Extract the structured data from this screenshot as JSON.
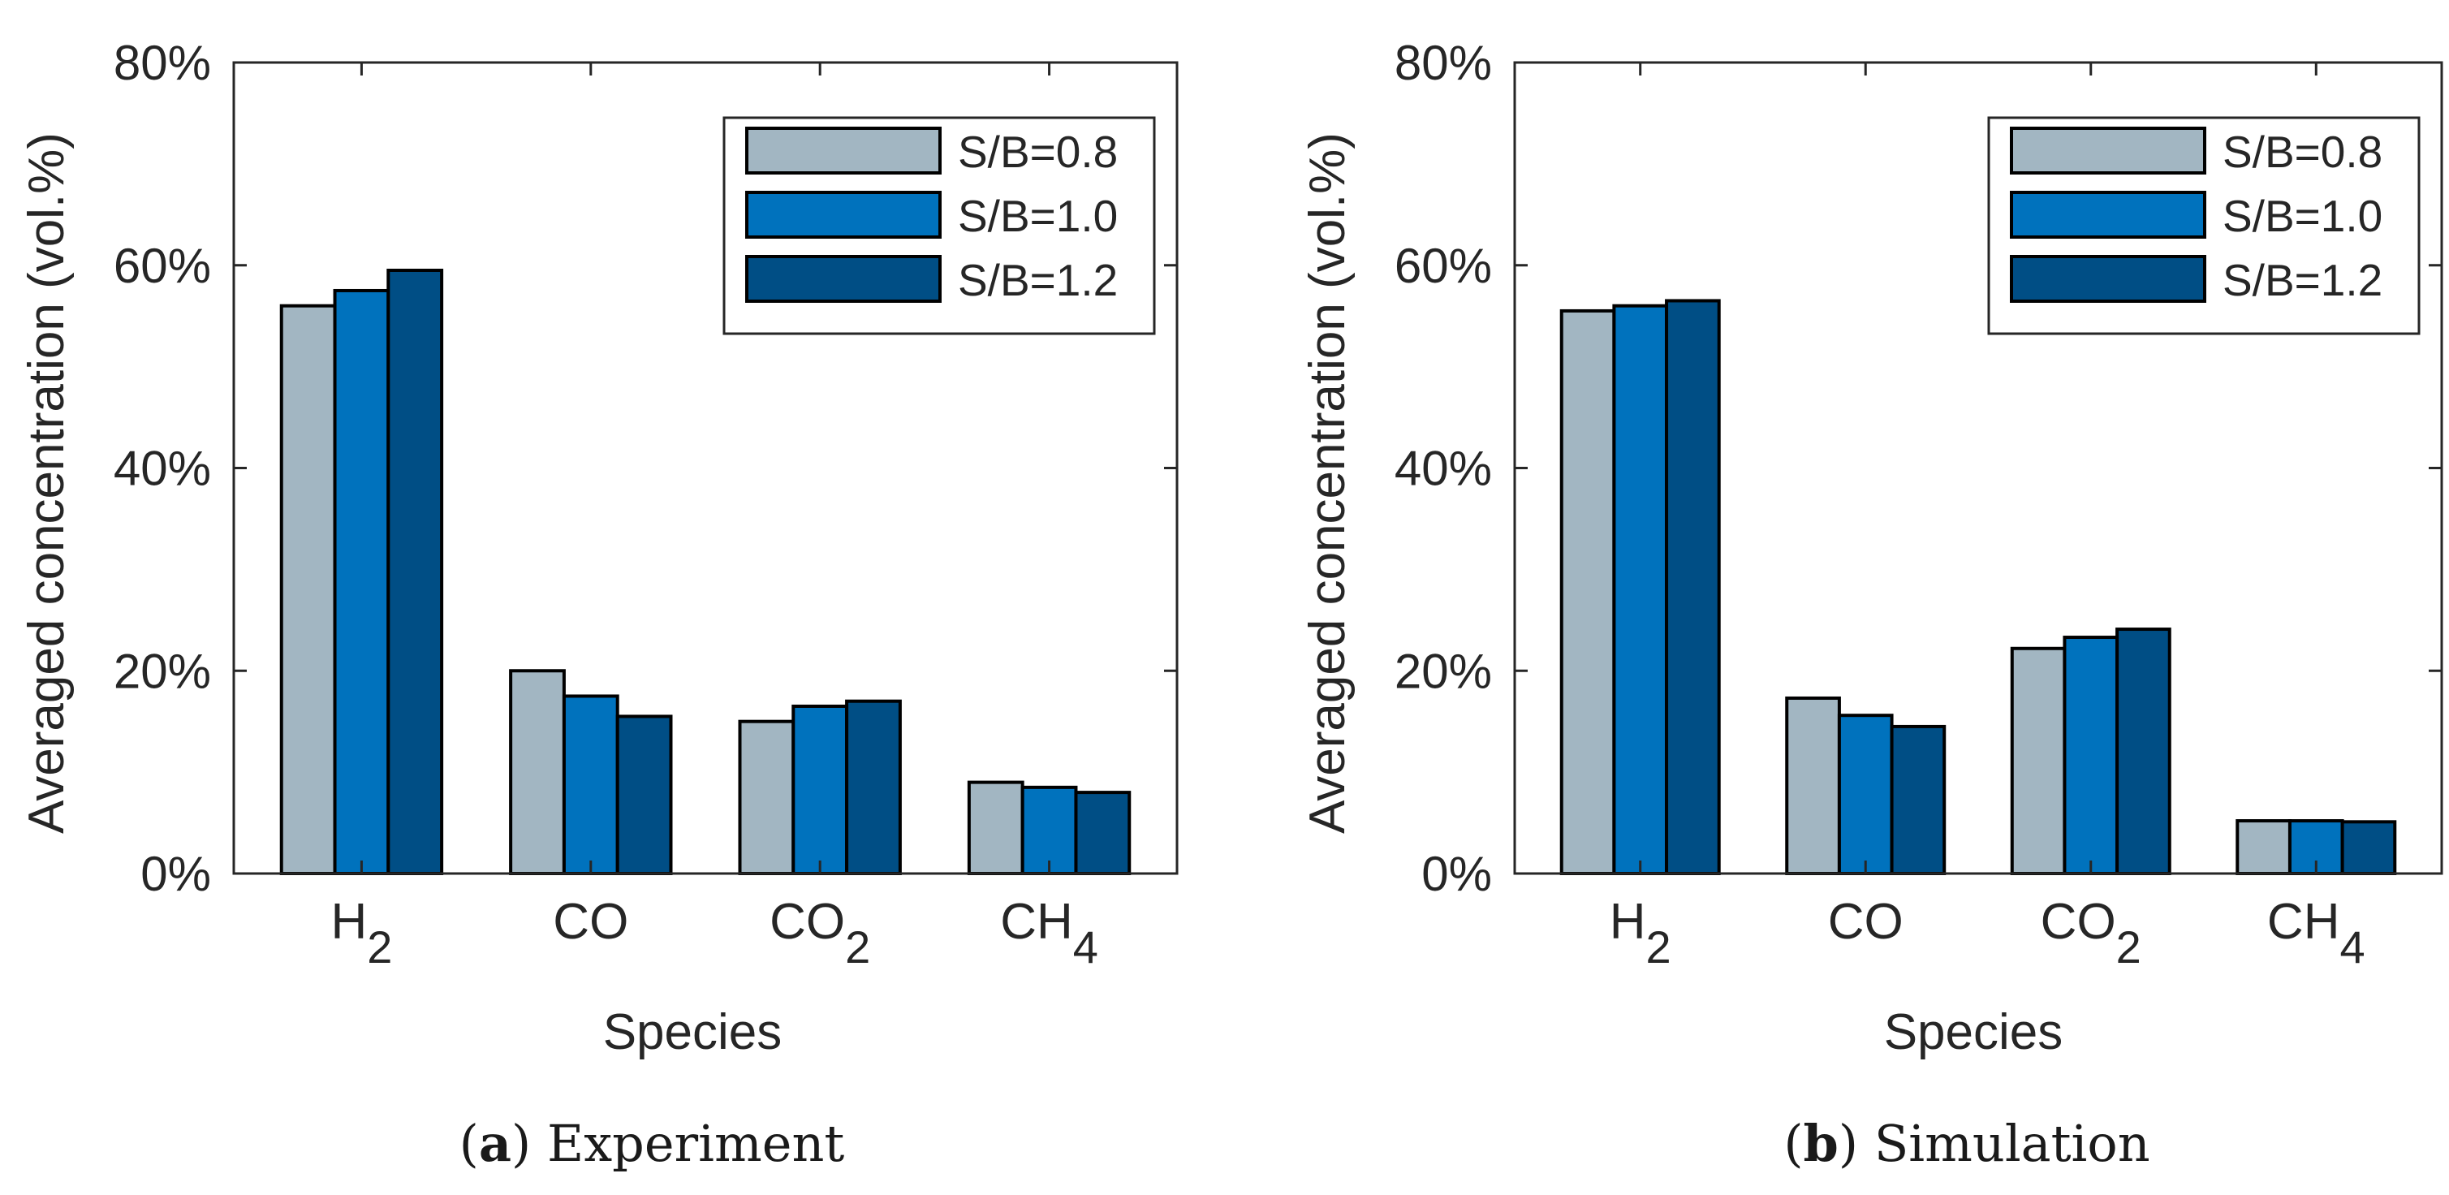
{
  "figure": {
    "colors": {
      "axis": "#262626",
      "text": "#262626",
      "bar_edge": "#000000",
      "caption": "#1a1a1a"
    }
  },
  "chart_data": [
    {
      "type": "bar",
      "panel_label": "a",
      "caption": "Experiment",
      "categories": [
        "H2",
        "CO",
        "CO2",
        "CH4"
      ],
      "category_labels": [
        {
          "base": "H",
          "sub": "2"
        },
        {
          "base": "CO",
          "sub": ""
        },
        {
          "base": "CO",
          "sub": "2"
        },
        {
          "base": "CH",
          "sub": "4"
        }
      ],
      "series": [
        {
          "name": "S/B=0.8",
          "color": "#a2b6c2",
          "values": [
            56.0,
            20.0,
            15.0,
            9.0
          ]
        },
        {
          "name": "S/B=1.0",
          "color": "#0072bd",
          "values": [
            57.5,
            17.5,
            16.5,
            8.5
          ]
        },
        {
          "name": "S/B=1.2",
          "color": "#004e85",
          "values": [
            59.5,
            15.5,
            17.0,
            8.0
          ]
        }
      ],
      "xlabel": "Species",
      "ylabel": "Averaged concentration (vol.%)",
      "ylim": [
        0,
        80
      ],
      "yticks": [
        "0%",
        "20%",
        "40%",
        "60%",
        "80%"
      ],
      "legend_position": "top-right",
      "grid": false
    },
    {
      "type": "bar",
      "panel_label": "b",
      "caption": "Simulation",
      "categories": [
        "H2",
        "CO",
        "CO2",
        "CH4"
      ],
      "category_labels": [
        {
          "base": "H",
          "sub": "2"
        },
        {
          "base": "CO",
          "sub": ""
        },
        {
          "base": "CO",
          "sub": "2"
        },
        {
          "base": "CH",
          "sub": "4"
        }
      ],
      "series": [
        {
          "name": "S/B=0.8",
          "color": "#a2b6c2",
          "values": [
            55.5,
            17.3,
            22.2,
            5.2
          ]
        },
        {
          "name": "S/B=1.0",
          "color": "#0072bd",
          "values": [
            56.0,
            15.6,
            23.3,
            5.2
          ]
        },
        {
          "name": "S/B=1.2",
          "color": "#004e85",
          "values": [
            56.5,
            14.5,
            24.1,
            5.1
          ]
        }
      ],
      "xlabel": "Species",
      "ylabel": "Averaged concentration (vol.%)",
      "ylim": [
        0,
        80
      ],
      "yticks": [
        "0%",
        "20%",
        "40%",
        "60%",
        "80%"
      ],
      "legend_position": "top-right",
      "grid": false
    }
  ]
}
